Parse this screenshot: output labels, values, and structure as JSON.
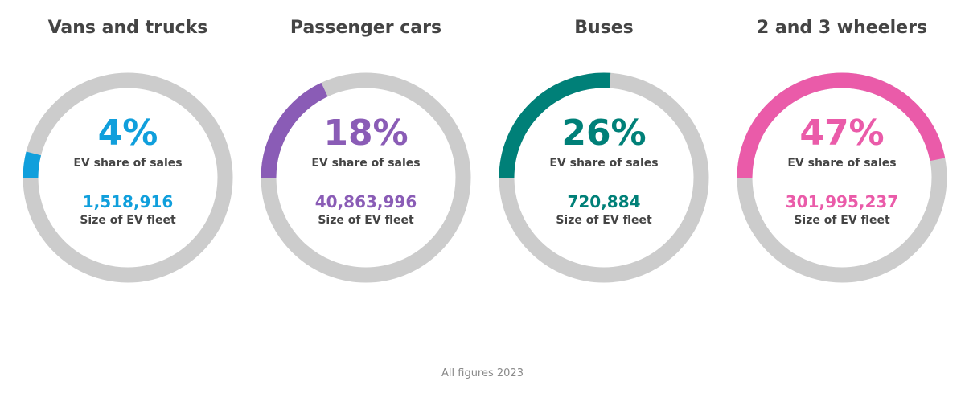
{
  "chart_data": {
    "type": "gauge",
    "items": [
      {
        "title": "Vans and trucks",
        "share_pct": 4,
        "share_label": "4%",
        "share_caption": "EV share of sales",
        "fleet": "1,518,916",
        "fleet_caption": "Size of EV fleet",
        "color": "#109fdc"
      },
      {
        "title": "Passenger cars",
        "share_pct": 18,
        "share_label": "18%",
        "share_caption": "EV share of sales",
        "fleet": "40,863,996",
        "fleet_caption": "Size of EV fleet",
        "color": "#8a5cb6"
      },
      {
        "title": "Buses",
        "share_pct": 26,
        "share_label": "26%",
        "share_caption": "EV share of sales",
        "fleet": "720,884",
        "fleet_caption": "Size of EV fleet",
        "color": "#008078"
      },
      {
        "title": "2 and 3 wheelers",
        "share_pct": 47,
        "share_label": "47%",
        "share_caption": "EV share of sales",
        "fleet": "301,995,237",
        "fleet_caption": "Size of EV fleet",
        "color": "#ea5ba9"
      }
    ],
    "track_color": "#cccccc",
    "footnote": "All figures 2023"
  }
}
